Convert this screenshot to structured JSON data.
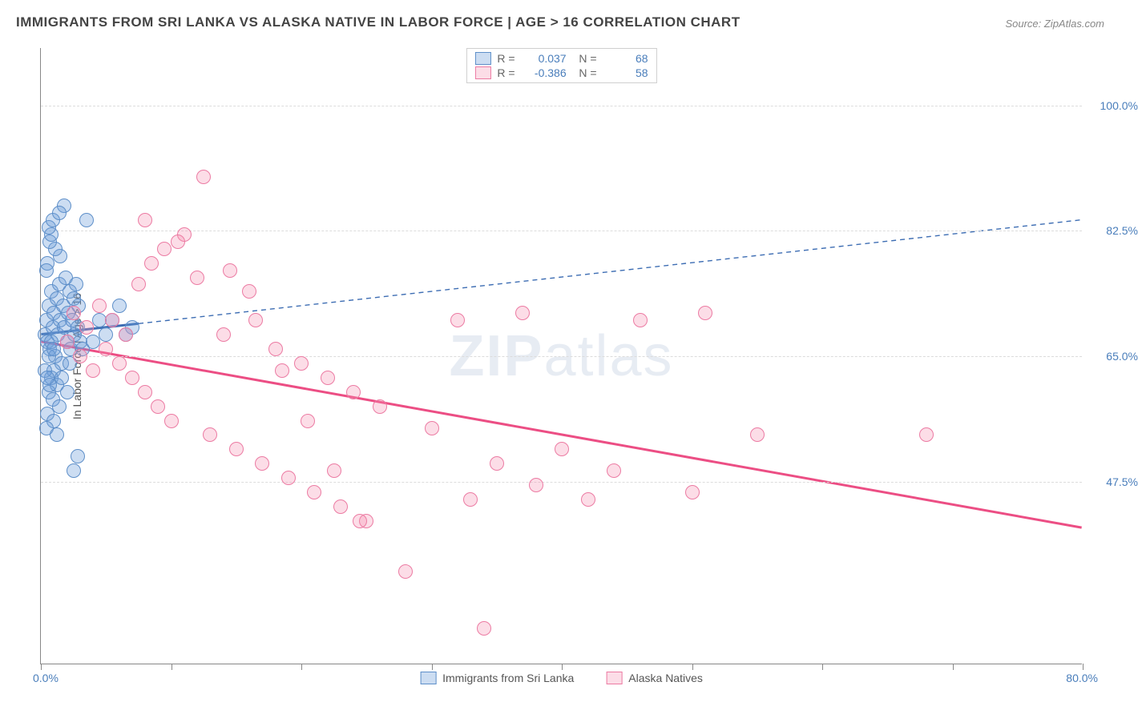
{
  "title": "IMMIGRANTS FROM SRI LANKA VS ALASKA NATIVE IN LABOR FORCE | AGE > 16 CORRELATION CHART",
  "source": "Source: ZipAtlas.com",
  "watermark_prefix": "ZIP",
  "watermark_suffix": "atlas",
  "chart": {
    "type": "scatter",
    "background_color": "#ffffff",
    "grid_color": "#dcdcdc",
    "axis_color": "#888888",
    "label_color": "#4a7ebb",
    "yaxis_title": "In Labor Force | Age > 16",
    "xlim": [
      0,
      80
    ],
    "ylim": [
      22,
      108
    ],
    "xtick_positions": [
      0,
      10,
      20,
      30,
      40,
      50,
      60,
      70,
      80
    ],
    "xlabel_min": "0.0%",
    "xlabel_max": "80.0%",
    "ytick_gridlines": [
      47.5,
      65.0,
      82.5,
      100.0
    ],
    "ytick_labels": [
      "47.5%",
      "65.0%",
      "82.5%",
      "100.0%"
    ],
    "point_radius": 9,
    "point_border_width": 1.5,
    "series": [
      {
        "name": "Immigrants from Sri Lanka",
        "fill_color": "rgba(109,158,217,0.35)",
        "stroke_color": "#5e8fc9",
        "R": "0.037",
        "N": "68",
        "trend": {
          "x1": 0,
          "y1": 68.0,
          "x2": 7.5,
          "y2": 69.5,
          "color": "#3d6db3",
          "width": 3,
          "dash": "none"
        },
        "trend_ext": {
          "x1": 7.5,
          "y1": 69.5,
          "x2": 80,
          "y2": 84.0,
          "color": "#3d6db3",
          "width": 1.4,
          "dash": "6,5"
        },
        "points": [
          [
            0.3,
            68
          ],
          [
            0.4,
            70
          ],
          [
            0.5,
            67
          ],
          [
            0.6,
            72
          ],
          [
            0.7,
            66
          ],
          [
            0.8,
            74
          ],
          [
            0.9,
            69
          ],
          [
            1.0,
            71
          ],
          [
            1.1,
            65
          ],
          [
            1.2,
            73
          ],
          [
            1.3,
            68
          ],
          [
            1.4,
            75
          ],
          [
            1.5,
            70
          ],
          [
            1.6,
            64
          ],
          [
            1.7,
            72
          ],
          [
            1.8,
            69
          ],
          [
            1.9,
            76
          ],
          [
            2.0,
            67
          ],
          [
            2.1,
            71
          ],
          [
            2.2,
            74
          ],
          [
            2.3,
            66
          ],
          [
            2.4,
            70
          ],
          [
            2.5,
            73
          ],
          [
            2.6,
            68
          ],
          [
            2.7,
            75
          ],
          [
            2.8,
            69
          ],
          [
            2.9,
            72
          ],
          [
            3.0,
            67
          ],
          [
            0.5,
            78
          ],
          [
            0.8,
            62
          ],
          [
            1.0,
            63
          ],
          [
            1.2,
            61
          ],
          [
            1.5,
            79
          ],
          [
            0.6,
            60
          ],
          [
            0.4,
            77
          ],
          [
            0.3,
            63
          ],
          [
            0.9,
            59
          ],
          [
            1.1,
            80
          ],
          [
            1.4,
            58
          ],
          [
            0.7,
            81
          ],
          [
            0.5,
            57
          ],
          [
            0.8,
            82
          ],
          [
            1.0,
            56
          ],
          [
            0.6,
            83
          ],
          [
            0.4,
            55
          ],
          [
            0.9,
            84
          ],
          [
            1.2,
            54
          ],
          [
            0.7,
            61
          ],
          [
            0.5,
            62
          ],
          [
            3.5,
            84
          ],
          [
            4.5,
            70
          ],
          [
            5.0,
            68
          ],
          [
            6.0,
            72
          ],
          [
            7.0,
            69
          ],
          [
            2.5,
            49
          ],
          [
            2.8,
            51
          ],
          [
            1.8,
            86
          ],
          [
            2.2,
            64
          ],
          [
            3.2,
            66
          ],
          [
            4.0,
            67
          ],
          [
            5.5,
            70
          ],
          [
            6.5,
            68
          ],
          [
            1.6,
            62
          ],
          [
            2.0,
            60
          ],
          [
            1.4,
            85
          ],
          [
            0.6,
            65
          ],
          [
            0.8,
            67
          ],
          [
            1.0,
            66
          ]
        ]
      },
      {
        "name": "Alaska Natives",
        "fill_color": "rgba(244,143,177,0.30)",
        "stroke_color": "#ec7ba3",
        "R": "-0.386",
        "N": "58",
        "trend": {
          "x1": 0,
          "y1": 67.0,
          "x2": 80,
          "y2": 41.0,
          "color": "#ec4e84",
          "width": 3,
          "dash": "none"
        },
        "points": [
          [
            2.0,
            67
          ],
          [
            2.5,
            71
          ],
          [
            3.0,
            65
          ],
          [
            3.5,
            69
          ],
          [
            4.0,
            63
          ],
          [
            4.5,
            72
          ],
          [
            5.0,
            66
          ],
          [
            5.5,
            70
          ],
          [
            6.0,
            64
          ],
          [
            6.5,
            68
          ],
          [
            7.0,
            62
          ],
          [
            7.5,
            75
          ],
          [
            8.0,
            60
          ],
          [
            8.5,
            78
          ],
          [
            9.0,
            58
          ],
          [
            9.5,
            80
          ],
          [
            10.0,
            56
          ],
          [
            11.0,
            82
          ],
          [
            12.0,
            76
          ],
          [
            13.0,
            54
          ],
          [
            14.0,
            68
          ],
          [
            15.0,
            52
          ],
          [
            16.0,
            74
          ],
          [
            17.0,
            50
          ],
          [
            18.0,
            66
          ],
          [
            19.0,
            48
          ],
          [
            20.0,
            64
          ],
          [
            21.0,
            46
          ],
          [
            22.0,
            62
          ],
          [
            23.0,
            44
          ],
          [
            24.0,
            60
          ],
          [
            25.0,
            42
          ],
          [
            12.5,
            90
          ],
          [
            14.5,
            77
          ],
          [
            16.5,
            70
          ],
          [
            18.5,
            63
          ],
          [
            20.5,
            56
          ],
          [
            22.5,
            49
          ],
          [
            24.5,
            42
          ],
          [
            26.0,
            58
          ],
          [
            28.0,
            35
          ],
          [
            30.0,
            55
          ],
          [
            32.0,
            70
          ],
          [
            33.0,
            45
          ],
          [
            35.0,
            50
          ],
          [
            37.0,
            71
          ],
          [
            38.0,
            47
          ],
          [
            40.0,
            52
          ],
          [
            42.0,
            45
          ],
          [
            44.0,
            49
          ],
          [
            34.0,
            27
          ],
          [
            46.0,
            70
          ],
          [
            50.0,
            46
          ],
          [
            51.0,
            71
          ],
          [
            55.0,
            54
          ],
          [
            68.0,
            54
          ],
          [
            8.0,
            84
          ],
          [
            10.5,
            81
          ]
        ]
      }
    ]
  }
}
